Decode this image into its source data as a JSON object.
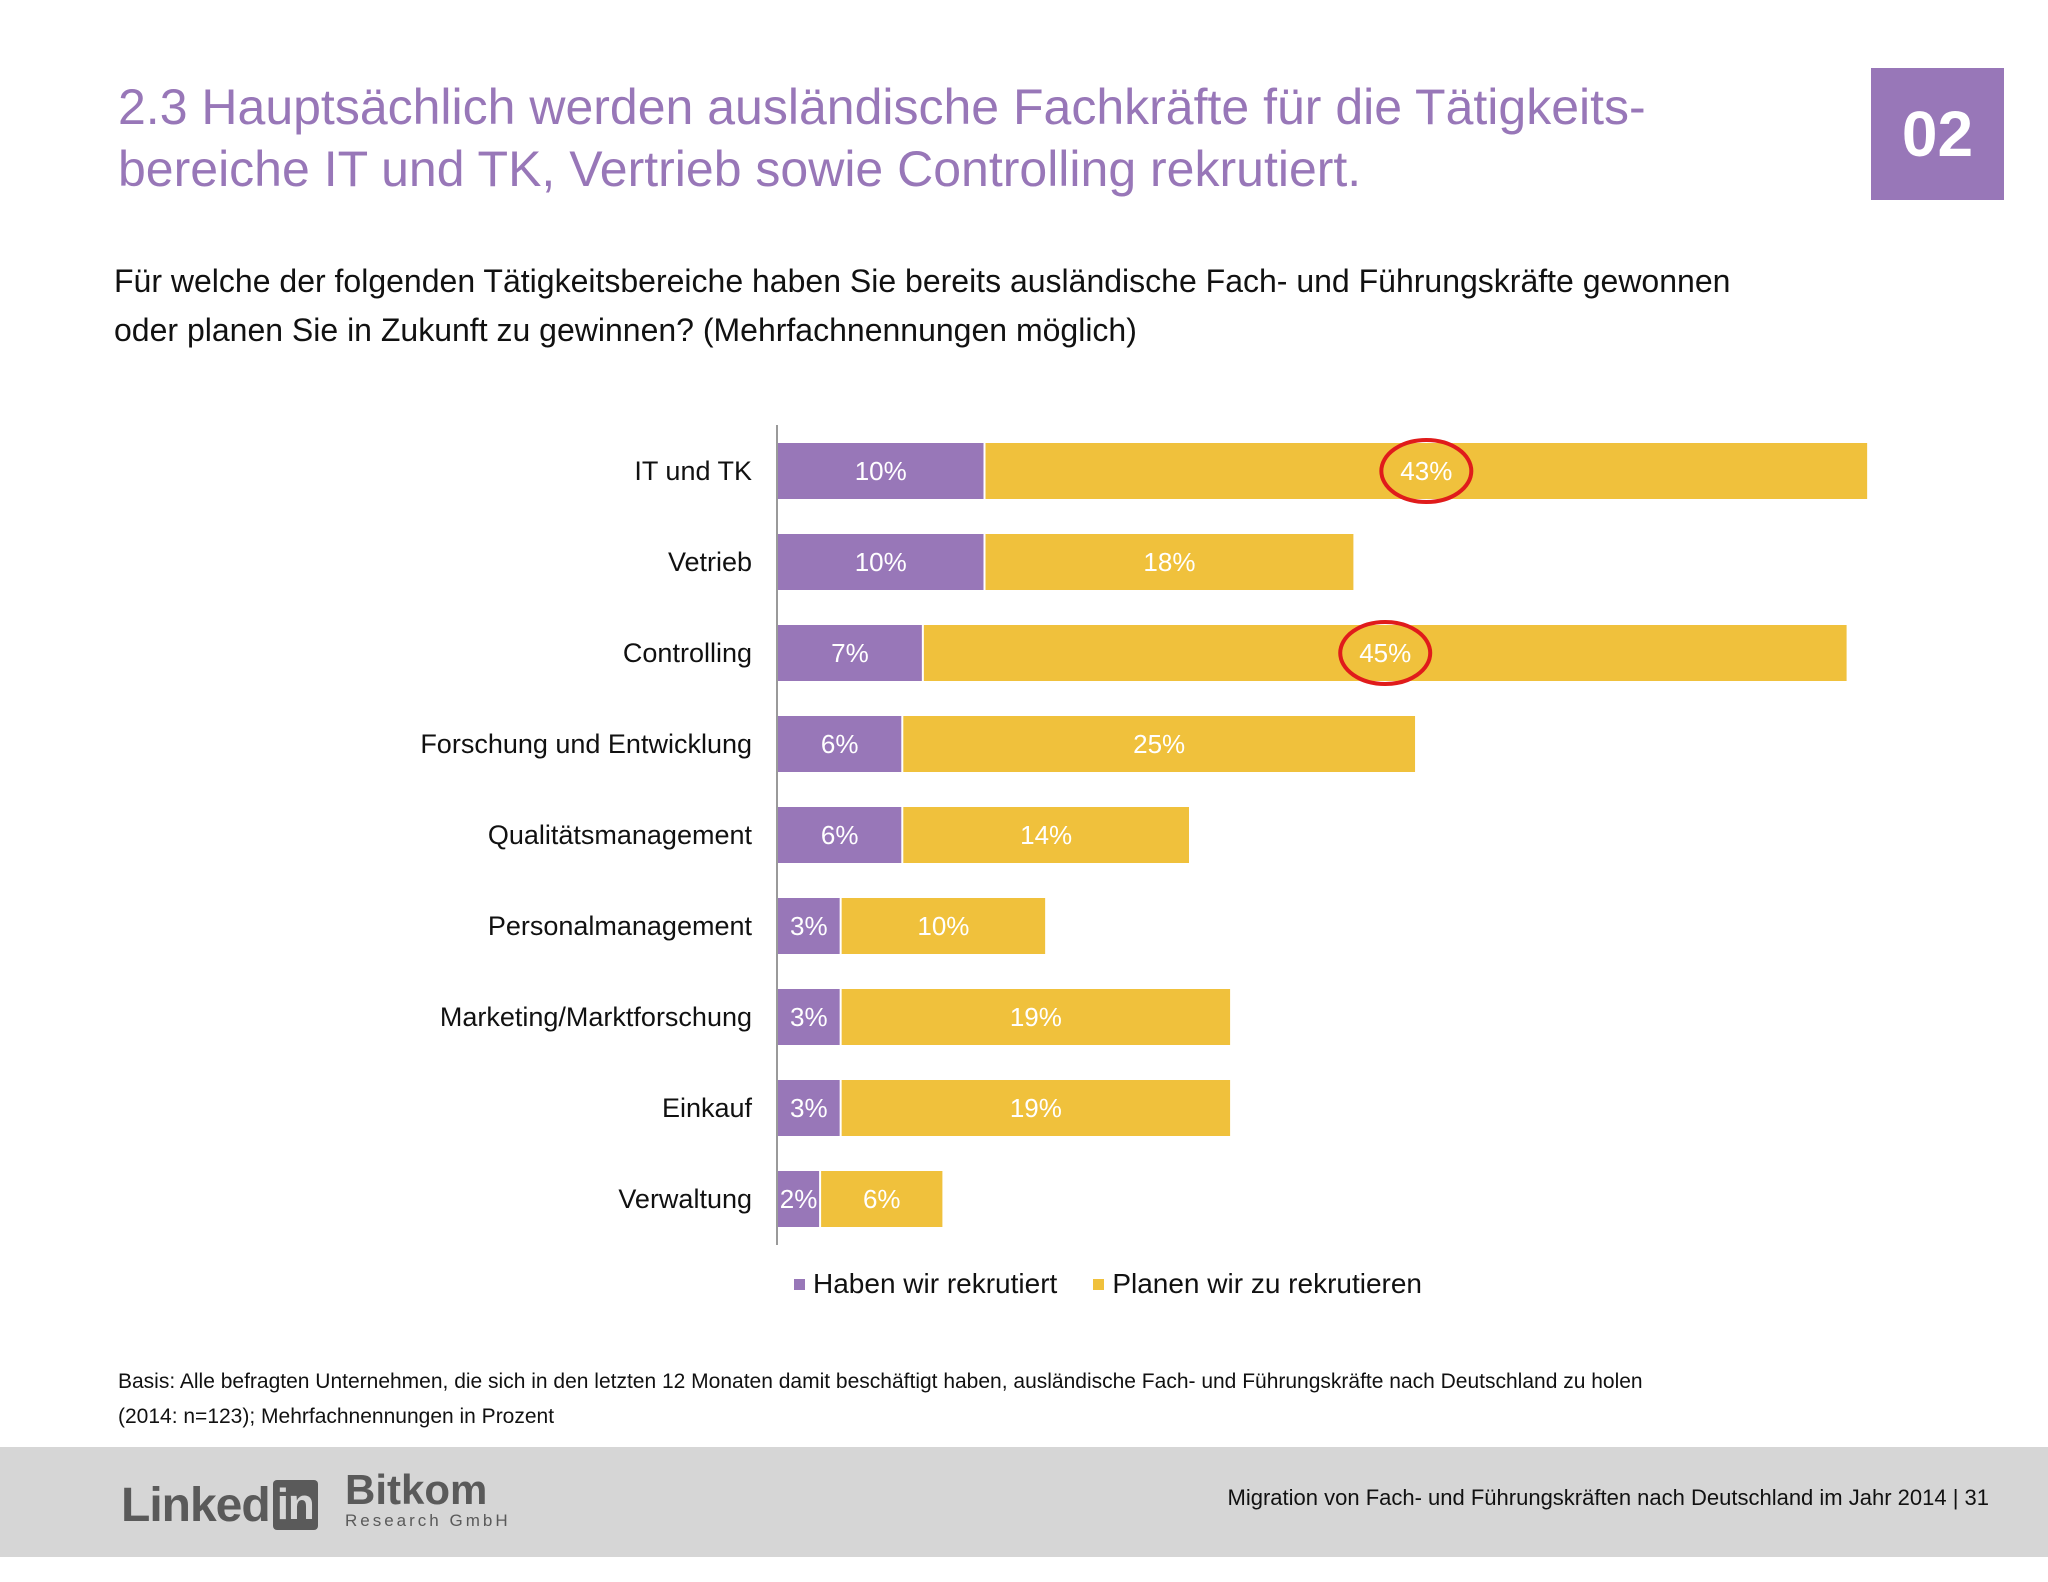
{
  "header": {
    "title_line1": "2.3 Hauptsächlich werden ausländische Fachkräfte für die Tätigkeits-",
    "title_line2": "bereiche IT und TK, Vertrieb sowie Controlling rekrutiert.",
    "section_number": "02"
  },
  "question": {
    "line1": "Für welche der folgenden Tätigkeitsbereiche haben Sie bereits ausländische Fach- und Führungskräfte gewonnen",
    "line2": "oder planen Sie in Zukunft zu gewinnen? (Mehrfachnennungen möglich)"
  },
  "chart_data": {
    "type": "bar",
    "orientation": "horizontal",
    "stacked": true,
    "categories": [
      "IT und TK",
      "Vetrieb",
      "Controlling",
      "Forschung und Entwicklung",
      "Qualitätsmanagement",
      "Personalmanagement",
      "Marketing/Marktforschung",
      "Einkauf",
      "Verwaltung"
    ],
    "series": [
      {
        "name": "Haben wir rekrutiert",
        "color": "#9877b8",
        "values": [
          10,
          10,
          7,
          6,
          6,
          3,
          3,
          3,
          2
        ],
        "labels": [
          "10%",
          "10%",
          "7%",
          "6%",
          "6%",
          "3%",
          "3%",
          "3%",
          "2%"
        ]
      },
      {
        "name": "Planen wir zu rekrutieren",
        "color": "#f0c13c",
        "values": [
          43,
          18,
          45,
          25,
          14,
          10,
          19,
          19,
          6
        ],
        "labels": [
          "43%",
          "18%",
          "45%",
          "25%",
          "14%",
          "10%",
          "19%",
          "19%",
          "6%"
        ]
      }
    ],
    "highlighted": [
      {
        "category": "IT und TK",
        "series": "Planen wir zu rekrutieren",
        "color": "#e01b1b"
      },
      {
        "category": "Controlling",
        "series": "Planen wir zu rekrutieren",
        "color": "#e01b1b"
      }
    ],
    "xlim": [
      0,
      55
    ],
    "legend_position": "bottom",
    "grid": false
  },
  "legend": {
    "recruited": "Haben wir rekrutiert",
    "planned": "Planen wir zu rekrutieren"
  },
  "footnote": {
    "line1": "Basis: Alle befragten Unternehmen, die sich in den letzten 12 Monaten damit beschäftigt haben, ausländische Fach- und Führungskräfte nach Deutschland zu holen",
    "line2": "(2014: n=123); Mehrfachnennungen in Prozent"
  },
  "footer": {
    "logo_linkedin_text": "Linked",
    "logo_linkedin_box": "in",
    "logo_bitkom": "Bitkom",
    "logo_bitkom_sub": "Research GmbH",
    "caption": "Migration von Fach- und Führungskräften nach Deutschland im Jahr 2014  |  31"
  },
  "colors": {
    "accent": "#9877b8",
    "recruited": "#9877b8",
    "planned": "#f0c13c",
    "highlight": "#e01b1b",
    "footer_bg": "#d6d6d6"
  }
}
